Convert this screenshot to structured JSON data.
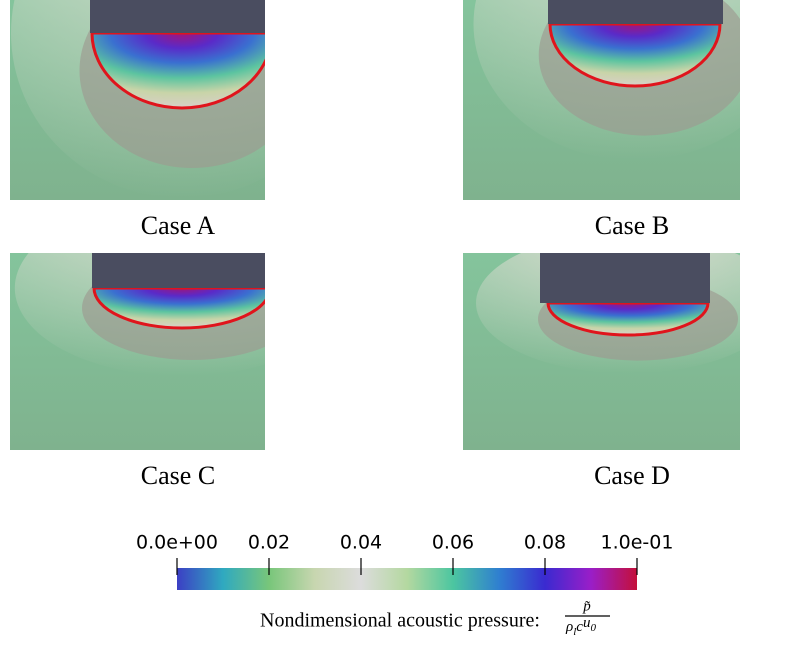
{
  "panels": [
    {
      "caption": "Case A"
    },
    {
      "caption": "Case B"
    },
    {
      "caption": "Case C"
    },
    {
      "caption": "Case D"
    }
  ],
  "colorbar": {
    "range": [
      0,
      0.1
    ],
    "ticks": [
      {
        "value": 0,
        "label": "0.0e+00"
      },
      0.02,
      0.04,
      0.06,
      0.08,
      {
        "value": 0.1,
        "label": "1.0e-01"
      }
    ],
    "colormap": [
      "#3c3fc4",
      "#2fa9c0",
      "#78c67a",
      "#c8d6b0",
      "#dcdcdc",
      "#b4d8a0",
      "#4cc6a0",
      "#2f7fd0",
      "#3a2ad0",
      "#9a1ec8",
      "#c4103a"
    ],
    "label": "Nondimensional acoustic pressure:",
    "numerator": "p̃",
    "denominator": [
      "ρ",
      "l",
      "c",
      "u",
      "0"
    ]
  }
}
